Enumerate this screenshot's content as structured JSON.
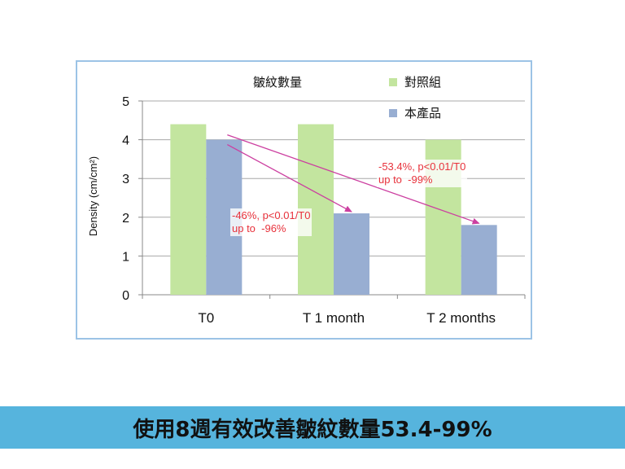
{
  "colors": {
    "frame_border": "#9cc3e6",
    "control": "#c3e59f",
    "product": "#98aed2",
    "arrow": "#cc3fa0",
    "annotation_text": "#e8323c",
    "banner_bg": "#56b4dd"
  },
  "chart_data": {
    "type": "bar",
    "title": "皺紋數量",
    "xlabel": "",
    "ylabel": "Density (cm/cm²)",
    "ylim": [
      0,
      5
    ],
    "yticks": [
      "0",
      "1",
      "2",
      "3",
      "4",
      "5"
    ],
    "categories": [
      "T0",
      "T 1 month",
      "T 2 months"
    ],
    "series": [
      {
        "name": "對照組",
        "color": "#c3e59f",
        "values": [
          4.4,
          4.4,
          4.0
        ]
      },
      {
        "name": "本產品",
        "color": "#98aed2",
        "values": [
          4.0,
          2.1,
          1.8
        ]
      }
    ],
    "grid": true,
    "legend": "top-right",
    "annotations": [
      {
        "text": "-46%, p<0.01/T0\nup to  -96%",
        "from_category": "T0",
        "to_category": "T 1 month"
      },
      {
        "text": "-53.4%, p<0.01/T0\nup to  -99%",
        "from_category": "T0",
        "to_category": "T 2 months"
      }
    ]
  },
  "banner": {
    "text": "使用8週有效改善皺紋數量53.4-99%"
  }
}
